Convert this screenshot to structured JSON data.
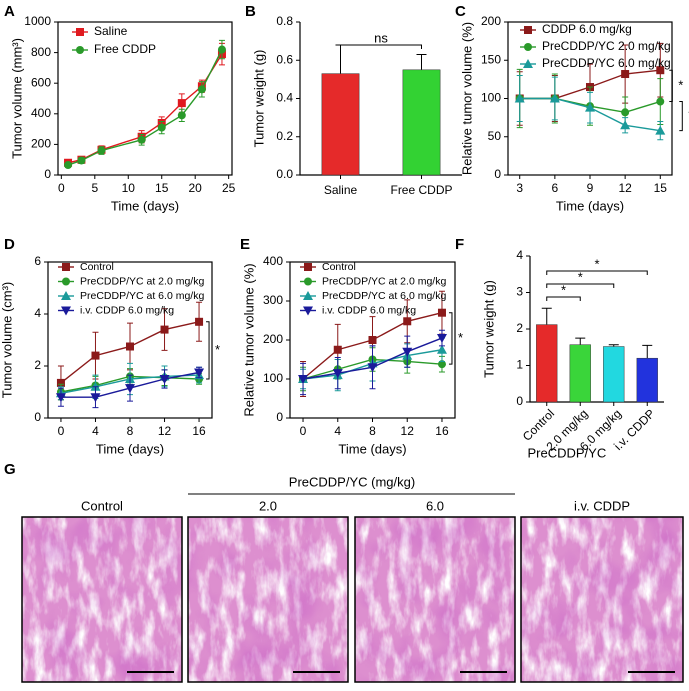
{
  "chart_data": [
    {
      "type": "line",
      "panel": "A",
      "x_label": "Time (days)",
      "y_label": "Tumor volume (mm³)",
      "x": [
        1,
        3,
        6,
        12,
        15,
        18,
        21,
        24
      ],
      "xlim": [
        -0.5,
        25.5
      ],
      "xticks": [
        0,
        5,
        10,
        15,
        20,
        25
      ],
      "ylim": [
        0,
        1000
      ],
      "yticks": [
        0,
        200,
        400,
        600,
        800,
        1000
      ],
      "series": [
        {
          "name": "Saline",
          "color": "#e0191f",
          "marker": "square",
          "values": [
            80,
            100,
            165,
            250,
            340,
            470,
            580,
            790
          ],
          "errors": [
            20,
            20,
            25,
            40,
            40,
            60,
            40,
            70
          ]
        },
        {
          "name": "Free CDDP",
          "color": "#2a9a2a",
          "marker": "circle",
          "values": [
            65,
            95,
            160,
            230,
            310,
            390,
            560,
            820
          ],
          "errors": [
            15,
            20,
            25,
            35,
            40,
            40,
            50,
            60
          ]
        }
      ]
    },
    {
      "type": "bar",
      "panel": "B",
      "y_label": "Tumor weight (g)",
      "categories": [
        "Saline",
        "Free CDDP"
      ],
      "values": [
        0.53,
        0.55
      ],
      "errors": [
        0.15,
        0.08
      ],
      "colors": [
        "#e52a2a",
        "#33d233"
      ],
      "ylim": [
        0,
        0.8
      ],
      "yticks": [
        {
          "value": 0,
          "label": "0.0"
        },
        0.2,
        0.4,
        0.6,
        0.8
      ],
      "annotations": [
        "ns"
      ]
    },
    {
      "type": "line",
      "panel": "C",
      "x_label": "Time (days)",
      "y_label": "Relative tumor volume (%)",
      "x": [
        3,
        6,
        9,
        12,
        15
      ],
      "xlim": [
        2,
        16
      ],
      "xticks": [
        3,
        6,
        9,
        12,
        15
      ],
      "ylim": [
        0,
        200
      ],
      "yticks": [
        0,
        50,
        100,
        150,
        200
      ],
      "series": [
        {
          "name": "CDDP 6.0 mg/kg",
          "color": "#8b1a1a",
          "marker": "square",
          "values": [
            100,
            100,
            115,
            132,
            137
          ],
          "errors": [
            35,
            30,
            30,
            38,
            35
          ]
        },
        {
          "name": "PreCDDP/YC 2.0 mg/kg",
          "color": "#2a9a2a",
          "marker": "circle",
          "values": [
            100,
            100,
            90,
            82,
            96
          ],
          "errors": [
            38,
            32,
            25,
            20,
            30
          ]
        },
        {
          "name": "PreCDDP/YC 6.0 mg/kg",
          "color": "#1a9a9a",
          "marker": "triangle",
          "values": [
            100,
            100,
            88,
            65,
            58
          ],
          "errors": [
            30,
            28,
            20,
            10,
            12
          ]
        }
      ],
      "annotations": [
        "*",
        "*"
      ]
    },
    {
      "type": "line",
      "panel": "D",
      "x_label": "Time (days)",
      "y_label": "Tumor volume (cm³)",
      "x": [
        0,
        4,
        8,
        12,
        16
      ],
      "xlim": [
        -1.5,
        17.5
      ],
      "xticks": [
        0,
        4,
        8,
        12,
        16
      ],
      "ylim": [
        0,
        6
      ],
      "yticks": [
        0,
        2,
        4,
        6
      ],
      "series": [
        {
          "name": "Control",
          "color": "#8b1a1a",
          "marker": "square",
          "values": [
            1.35,
            2.4,
            2.75,
            3.4,
            3.7
          ],
          "errors": [
            0.65,
            0.9,
            0.9,
            0.8,
            0.75
          ]
        },
        {
          "name": "PreCDDP/YC at 2.0 mg/kg",
          "color": "#2a9a2a",
          "marker": "circle",
          "values": [
            1.0,
            1.25,
            1.6,
            1.55,
            1.5
          ],
          "errors": [
            0.3,
            0.35,
            0.3,
            0.3,
            0.2
          ]
        },
        {
          "name": "PreCDDP/YC at 6.0 mg/kg",
          "color": "#1a9a9a",
          "marker": "triangle",
          "values": [
            0.95,
            1.2,
            1.5,
            1.6,
            1.65
          ],
          "errors": [
            0.25,
            0.45,
            0.6,
            0.4,
            0.3
          ]
        },
        {
          "name": "i.v. CDDP 6.0 mg/kg",
          "color": "#1a1a9a",
          "marker": "triangle-down",
          "values": [
            0.8,
            0.8,
            1.15,
            1.5,
            1.75
          ],
          "errors": [
            0.35,
            0.4,
            0.5,
            0.35,
            0.2
          ]
        }
      ],
      "annotations": [
        "*"
      ]
    },
    {
      "type": "line",
      "panel": "E",
      "x_label": "Time (days)",
      "y_label": "Relative tumor volume (%)",
      "x": [
        0,
        4,
        8,
        12,
        16
      ],
      "xlim": [
        -1.5,
        17.5
      ],
      "xticks": [
        0,
        4,
        8,
        12,
        16
      ],
      "ylim": [
        0,
        400
      ],
      "yticks": [
        0,
        100,
        200,
        300,
        400
      ],
      "series": [
        {
          "name": "Control",
          "color": "#8b1a1a",
          "marker": "square",
          "values": [
            100,
            175,
            200,
            248,
            270
          ],
          "errors": [
            45,
            65,
            60,
            55,
            55
          ]
        },
        {
          "name": "PreCDDP/YC at 2.0 mg/kg",
          "color": "#2a9a2a",
          "marker": "circle",
          "values": [
            100,
            125,
            150,
            145,
            138
          ],
          "errors": [
            30,
            25,
            30,
            30,
            20
          ]
        },
        {
          "name": "PreCDDP/YC at 6.0 mg/kg",
          "color": "#1a9a9a",
          "marker": "triangle",
          "values": [
            100,
            110,
            140,
            160,
            175
          ],
          "errors": [
            25,
            40,
            45,
            30,
            30
          ]
        },
        {
          "name": "i.v. CDDP 6.0 mg/kg",
          "color": "#1a1a9a",
          "marker": "triangle-down",
          "values": [
            100,
            115,
            130,
            170,
            205
          ],
          "errors": [
            40,
            40,
            55,
            40,
            20
          ]
        }
      ],
      "annotations": [
        "*"
      ]
    },
    {
      "type": "bar",
      "panel": "F",
      "x_label": "PreCDDP/YC",
      "y_label": "Tumor weight (g)",
      "categories": [
        "Control",
        "2.0 mg/kg",
        "6.0 mg/kg",
        "i.v. CDDP"
      ],
      "values": [
        2.12,
        1.57,
        1.52,
        1.2
      ],
      "errors": [
        0.45,
        0.18,
        0.05,
        0.35
      ],
      "colors": [
        "#e52a2a",
        "#3ad53a",
        "#22d8e0",
        "#2233dd"
      ],
      "ylim": [
        0,
        4
      ],
      "yticks": [
        0,
        1,
        2,
        3,
        4
      ],
      "annotations": [
        "*",
        "*",
        "*"
      ]
    }
  ],
  "panel_g": {
    "panel": "G",
    "group_title": "PreCDDP/YC (mg/kg)",
    "images": [
      {
        "label": "Control"
      },
      {
        "label": "2.0"
      },
      {
        "label": "6.0"
      },
      {
        "label": "i.v. CDDP"
      }
    ]
  }
}
